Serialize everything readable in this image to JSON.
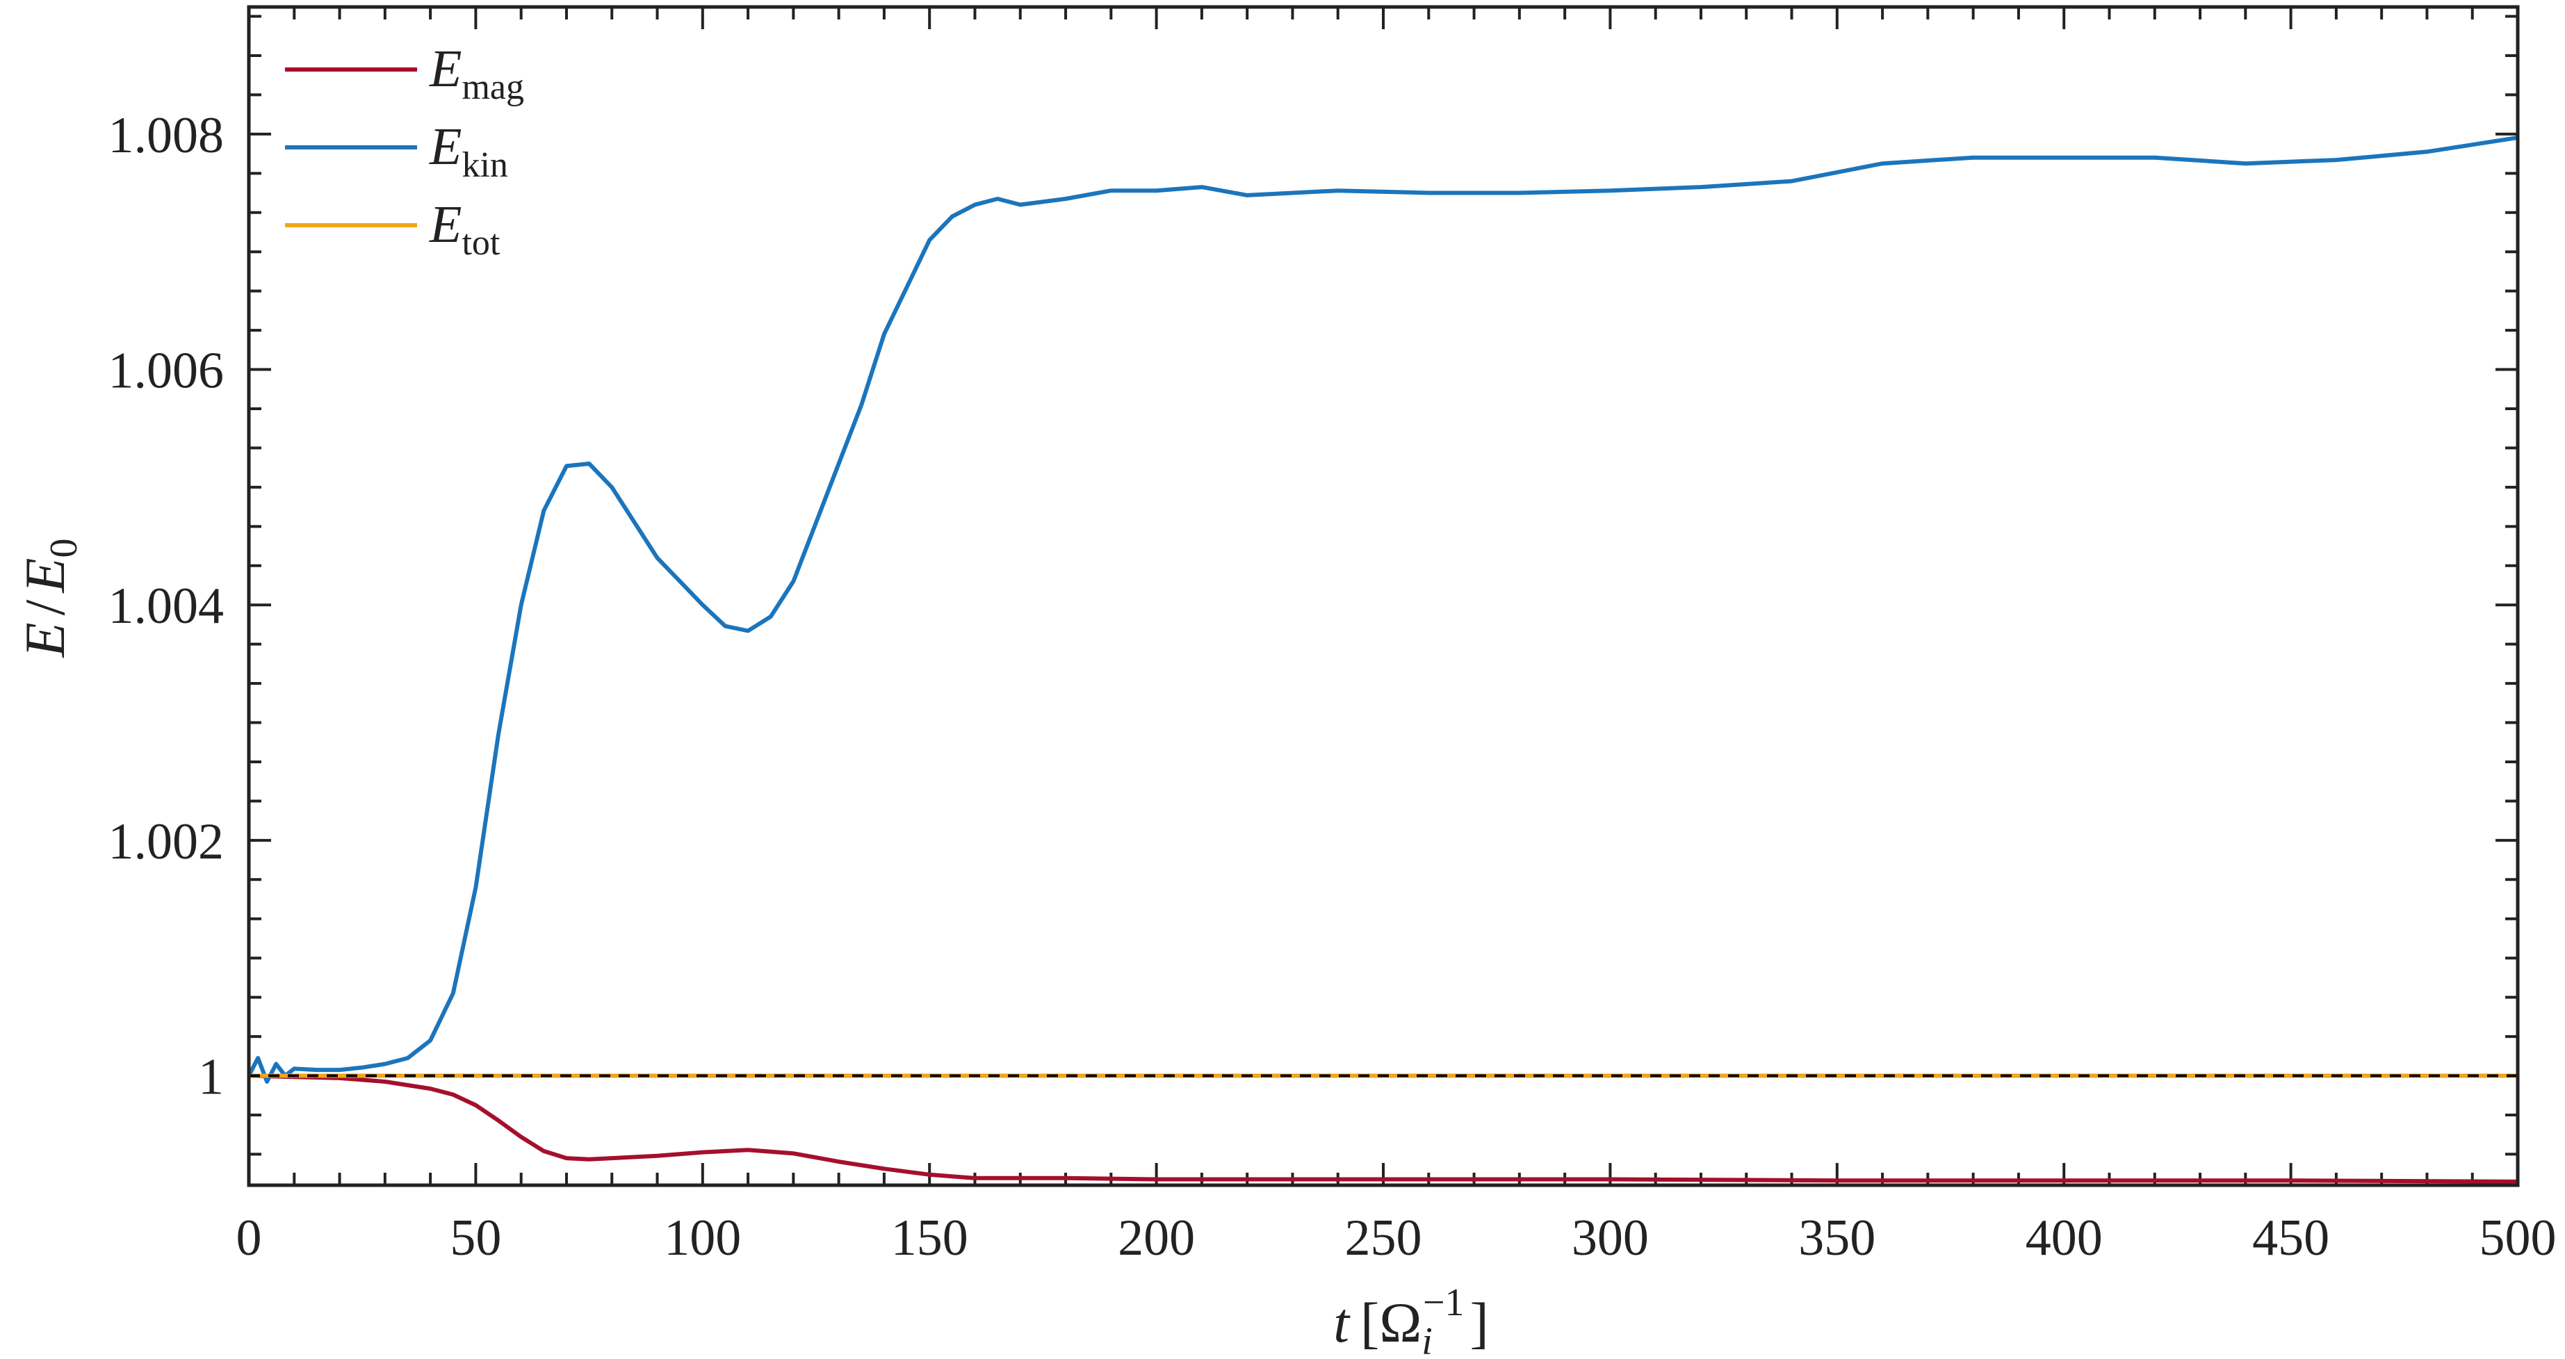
{
  "chart_data": {
    "type": "line",
    "title": "",
    "xlabel": {
      "var": "t",
      "unit_symbol": "Ω",
      "unit_sub": "i",
      "unit_sup": "−1"
    },
    "ylabel": {
      "num": "E",
      "den": "E",
      "den_sub": "0"
    },
    "xlim": [
      0,
      500
    ],
    "ylim": [
      0.99907,
      1.00908
    ],
    "xticks": [
      0,
      50,
      100,
      150,
      200,
      250,
      300,
      350,
      400,
      450,
      500
    ],
    "xtick_labels": [
      "0",
      "50",
      "100",
      "150",
      "200",
      "250",
      "300",
      "350",
      "400",
      "450",
      "500"
    ],
    "yticks": [
      1.0,
      1.002,
      1.004,
      1.006,
      1.008
    ],
    "ytick_labels": [
      "1",
      "1.002",
      "1.004",
      "1.006",
      "1.008"
    ],
    "grid": false,
    "legend_position": "top-left",
    "reference_line": {
      "y": 1.0,
      "style": "dashed",
      "color": "#000000"
    },
    "series": [
      {
        "name": "E",
        "name_sub": "mag",
        "color": "#a50f2d",
        "points": [
          [
            0,
            1.0
          ],
          [
            10,
            0.99999
          ],
          [
            20,
            0.99998
          ],
          [
            30,
            0.99995
          ],
          [
            40,
            0.99989
          ],
          [
            45,
            0.99984
          ],
          [
            50,
            0.99975
          ],
          [
            55,
            0.99962
          ],
          [
            60,
            0.99948
          ],
          [
            65,
            0.99936
          ],
          [
            70,
            0.9993
          ],
          [
            75,
            0.99929
          ],
          [
            80,
            0.9993
          ],
          [
            90,
            0.99932
          ],
          [
            100,
            0.99935
          ],
          [
            110,
            0.99937
          ],
          [
            120,
            0.99934
          ],
          [
            130,
            0.99927
          ],
          [
            140,
            0.99921
          ],
          [
            150,
            0.99916
          ],
          [
            160,
            0.99913
          ],
          [
            180,
            0.99913
          ],
          [
            200,
            0.99912
          ],
          [
            250,
            0.99912
          ],
          [
            300,
            0.99912
          ],
          [
            350,
            0.99911
          ],
          [
            400,
            0.99911
          ],
          [
            450,
            0.99911
          ],
          [
            500,
            0.9991
          ]
        ]
      },
      {
        "name": "E",
        "name_sub": "kin",
        "color": "#1b75bc",
        "points": [
          [
            0,
            1.0
          ],
          [
            2,
            1.00015
          ],
          [
            4,
            0.99995
          ],
          [
            6,
            1.0001
          ],
          [
            8,
            1.0
          ],
          [
            10,
            1.00006
          ],
          [
            15,
            1.00005
          ],
          [
            20,
            1.00005
          ],
          [
            25,
            1.00007
          ],
          [
            30,
            1.0001
          ],
          [
            35,
            1.00015
          ],
          [
            40,
            1.0003
          ],
          [
            45,
            1.0007
          ],
          [
            50,
            1.0016
          ],
          [
            55,
            1.0029
          ],
          [
            60,
            1.004
          ],
          [
            65,
            1.0048
          ],
          [
            70,
            1.00518
          ],
          [
            75,
            1.0052
          ],
          [
            80,
            1.005
          ],
          [
            85,
            1.0047
          ],
          [
            90,
            1.0044
          ],
          [
            95,
            1.0042
          ],
          [
            100,
            1.004
          ],
          [
            105,
            1.00382
          ],
          [
            110,
            1.00378
          ],
          [
            115,
            1.0039
          ],
          [
            120,
            1.0042
          ],
          [
            125,
            1.0047
          ],
          [
            130,
            1.0052
          ],
          [
            135,
            1.0057
          ],
          [
            140,
            1.0063
          ],
          [
            145,
            1.0067
          ],
          [
            150,
            1.0071
          ],
          [
            155,
            1.0073
          ],
          [
            160,
            1.0074
          ],
          [
            165,
            1.00745
          ],
          [
            170,
            1.0074
          ],
          [
            180,
            1.00745
          ],
          [
            190,
            1.00752
          ],
          [
            200,
            1.00752
          ],
          [
            210,
            1.00755
          ],
          [
            220,
            1.00748
          ],
          [
            240,
            1.00752
          ],
          [
            260,
            1.0075
          ],
          [
            280,
            1.0075
          ],
          [
            300,
            1.00752
          ],
          [
            320,
            1.00755
          ],
          [
            340,
            1.0076
          ],
          [
            360,
            1.00775
          ],
          [
            380,
            1.0078
          ],
          [
            400,
            1.0078
          ],
          [
            420,
            1.0078
          ],
          [
            440,
            1.00775
          ],
          [
            460,
            1.00778
          ],
          [
            480,
            1.00785
          ],
          [
            500,
            1.00797
          ]
        ]
      },
      {
        "name": "E",
        "name_sub": "tot",
        "color": "#f2a51a",
        "points": [
          [
            0,
            1.0
          ],
          [
            500,
            1.0
          ]
        ]
      }
    ]
  }
}
